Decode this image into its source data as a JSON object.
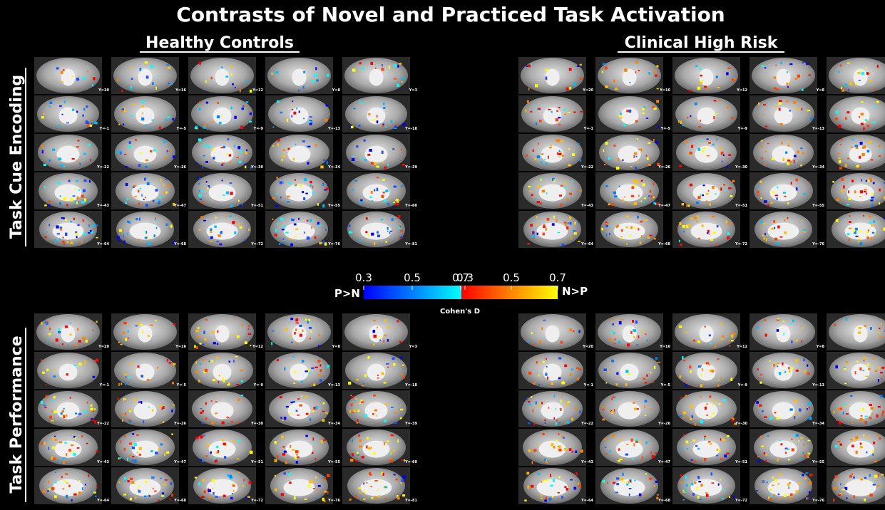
{
  "title": "Contrasts of Novel and Practiced Task Activation",
  "groups": [
    "Healthy Controls",
    "Clinical High Risk"
  ],
  "rows": [
    "Task Cue Encoding",
    "Task Performance"
  ],
  "slices": [
    [
      "Y=20",
      "Y=16",
      "Y=12",
      "Y=8",
      "Y=3"
    ],
    [
      "Y=-1",
      "Y=-5",
      "Y=-9",
      "Y=-13",
      "Y=-18"
    ],
    [
      "Y=-22",
      "Y=-26",
      "Y=-30",
      "Y=-34",
      "Y=-39"
    ],
    [
      "Y=-43",
      "Y=-47",
      "Y=-51",
      "Y=-55",
      "Y=-60"
    ],
    [
      "Y=-64",
      "Y=-68",
      "Y=-72",
      "Y=-76",
      "Y=-81"
    ]
  ],
  "colorbar": {
    "left_label": "P>N",
    "right_label": "N>P",
    "left_ticks": [
      "0.3",
      "0.5",
      "0.7"
    ],
    "right_ticks": [
      "0.3",
      "0.5",
      "0.7"
    ],
    "label": "Cohen's D"
  }
}
